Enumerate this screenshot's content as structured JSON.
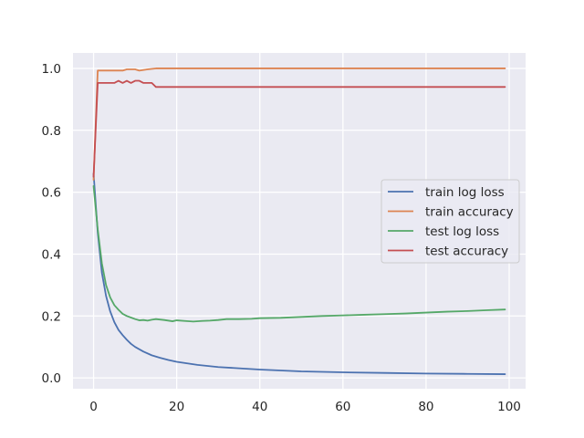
{
  "chart_data": {
    "type": "line",
    "title": "",
    "xlabel": "",
    "ylabel": "",
    "xlim": [
      -4.95,
      103.95
    ],
    "ylim": [
      -0.035,
      1.05
    ],
    "x_ticks": [
      0,
      20,
      40,
      60,
      80,
      100
    ],
    "x_tick_labels": [
      "0",
      "20",
      "40",
      "60",
      "80",
      "100"
    ],
    "y_ticks": [
      0.0,
      0.2,
      0.4,
      0.6,
      0.8,
      1.0
    ],
    "y_tick_labels": [
      "0.0",
      "0.2",
      "0.4",
      "0.6",
      "0.8",
      "1.0"
    ],
    "grid": true,
    "legend_position": "center-right",
    "series": [
      {
        "name": "train log loss",
        "color": "#4c72b0",
        "x": [
          0,
          1,
          2,
          3,
          4,
          5,
          6,
          7,
          8,
          9,
          10,
          12,
          14,
          16,
          18,
          20,
          25,
          30,
          35,
          40,
          50,
          60,
          70,
          80,
          90,
          99
        ],
        "y": [
          0.66,
          0.47,
          0.34,
          0.265,
          0.215,
          0.18,
          0.155,
          0.138,
          0.123,
          0.11,
          0.1,
          0.085,
          0.073,
          0.065,
          0.058,
          0.052,
          0.042,
          0.035,
          0.031,
          0.027,
          0.021,
          0.018,
          0.016,
          0.014,
          0.013,
          0.012
        ]
      },
      {
        "name": "train accuracy",
        "color": "#dd8452",
        "x": [
          0,
          1,
          2,
          3,
          5,
          7,
          8,
          10,
          11,
          13,
          15,
          20,
          40,
          60,
          80,
          99
        ],
        "y": [
          0.64,
          0.993,
          0.993,
          0.993,
          0.993,
          0.993,
          0.997,
          0.997,
          0.993,
          0.997,
          1.0,
          1.0,
          1.0,
          1.0,
          1.0,
          1.0
        ]
      },
      {
        "name": "test log loss",
        "color": "#55a868",
        "x": [
          0,
          1,
          2,
          3,
          4,
          5,
          6,
          7,
          8,
          9,
          10,
          11,
          12,
          13,
          14,
          15,
          17,
          19,
          20,
          22,
          24,
          26,
          28,
          30,
          32,
          35,
          38,
          40,
          45,
          50,
          55,
          60,
          65,
          70,
          75,
          80,
          85,
          90,
          95,
          99
        ],
        "y": [
          0.62,
          0.48,
          0.37,
          0.3,
          0.26,
          0.235,
          0.22,
          0.207,
          0.2,
          0.195,
          0.19,
          0.186,
          0.187,
          0.185,
          0.188,
          0.19,
          0.187,
          0.183,
          0.186,
          0.184,
          0.182,
          0.184,
          0.185,
          0.187,
          0.19,
          0.19,
          0.191,
          0.193,
          0.194,
          0.197,
          0.2,
          0.202,
          0.204,
          0.206,
          0.208,
          0.211,
          0.214,
          0.216,
          0.219,
          0.221
        ]
      },
      {
        "name": "test accuracy",
        "color": "#c44e52",
        "x": [
          0,
          1,
          2,
          3,
          4,
          5,
          6,
          7,
          8,
          9,
          10,
          11,
          12,
          13,
          14,
          15,
          16,
          20,
          40,
          60,
          80,
          99
        ],
        "y": [
          0.65,
          0.953,
          0.953,
          0.953,
          0.953,
          0.953,
          0.96,
          0.953,
          0.96,
          0.953,
          0.96,
          0.96,
          0.953,
          0.953,
          0.953,
          0.94,
          0.94,
          0.94,
          0.94,
          0.94,
          0.94,
          0.94
        ]
      }
    ]
  }
}
